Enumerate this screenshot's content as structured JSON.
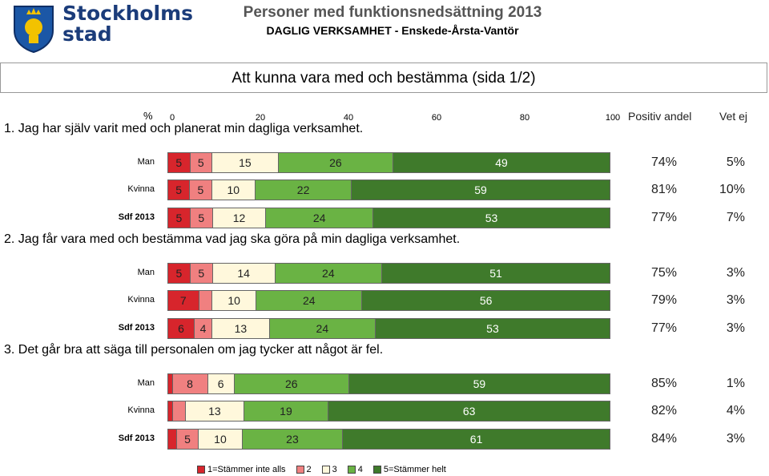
{
  "logo": {
    "line1": "Stockholms",
    "line2": "stad"
  },
  "header": {
    "title": "Personer med funktionsnedsättning 2013",
    "subtitle": "DAGLIG VERKSAMHET - Enskede-Årsta-Vantör"
  },
  "page_title": "Att kunna vara med och bestämma (sida 1/2)",
  "axis": {
    "unit": "%",
    "ticks": [
      "0",
      "20",
      "40",
      "60",
      "80",
      "100"
    ]
  },
  "columns": {
    "positive": "Positiv andel",
    "unknown": "Vet ej"
  },
  "colors": {
    "c1": "#d7252c",
    "c2": "#f08080",
    "c3": "#fff8dc",
    "c4": "#6ab344",
    "c5": "#3f7a2b"
  },
  "legend": [
    "1=Stämmer inte alls",
    "2",
    "3",
    "4",
    "5=Stämmer helt"
  ],
  "chart_data": {
    "type": "bar",
    "stacked": true,
    "orientation": "horizontal",
    "xlim": [
      0,
      100
    ],
    "questions": [
      {
        "text": "1. Jag har själv varit med och planerat min dagliga verksamhet.",
        "rows": [
          {
            "label": "Man",
            "values": [
              5,
              5,
              15,
              26,
              49
            ],
            "positive": "74%",
            "unknown": "5%"
          },
          {
            "label": "Kvinna",
            "values": [
              5,
              5,
              10,
              22,
              59
            ],
            "positive": "81%",
            "unknown": "10%"
          },
          {
            "label": "Sdf 2013",
            "values": [
              5,
              5,
              12,
              24,
              53
            ],
            "positive": "77%",
            "unknown": "7%"
          }
        ]
      },
      {
        "text": "2. Jag får vara med och bestämma vad jag ska göra på min dagliga verksamhet.",
        "rows": [
          {
            "label": "Man",
            "values": [
              5,
              5,
              14,
              24,
              51
            ],
            "positive": "75%",
            "unknown": "3%"
          },
          {
            "label": "Kvinna",
            "values": [
              7,
              3,
              10,
              24,
              56
            ],
            "positive": "79%",
            "unknown": "3%"
          },
          {
            "label": "Sdf 2013",
            "values": [
              6,
              4,
              13,
              24,
              53
            ],
            "positive": "77%",
            "unknown": "3%"
          }
        ]
      },
      {
        "text": "3. Det går bra att säga till personalen om jag tycker att något är fel.",
        "rows": [
          {
            "label": "Man",
            "values": [
              1,
              8,
              6,
              26,
              59
            ],
            "positive": "85%",
            "unknown": "1%"
          },
          {
            "label": "Kvinna",
            "values": [
              1,
              3,
              13,
              19,
              63
            ],
            "positive": "82%",
            "unknown": "4%"
          },
          {
            "label": "Sdf 2013",
            "values": [
              2,
              5,
              10,
              23,
              61
            ],
            "positive": "84%",
            "unknown": "3%"
          }
        ]
      }
    ]
  }
}
